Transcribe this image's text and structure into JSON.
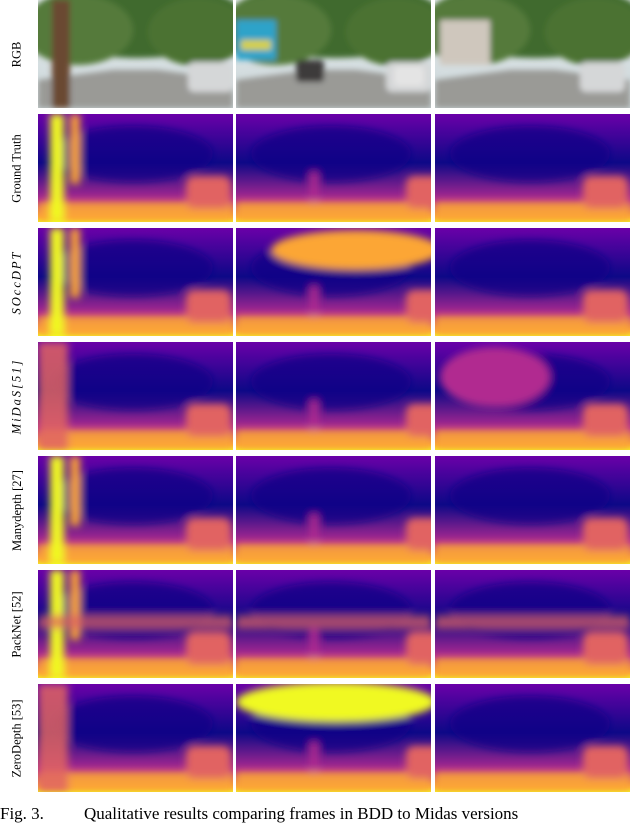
{
  "figure": {
    "row_labels": [
      {
        "text": "RGB",
        "math": false
      },
      {
        "text": "Ground Truth",
        "math": false
      },
      {
        "text": "SOccDPT",
        "math": true
      },
      {
        "text": "MiDaS[51]",
        "math": true
      },
      {
        "text": "Manydepth [27]",
        "math": false
      },
      {
        "text": "PackNet [52]",
        "math": false
      },
      {
        "text": "ZeroDepth [53]",
        "math": false
      }
    ],
    "colormap": [
      "#0d0887",
      "#6a00a8",
      "#b12a90",
      "#e16462",
      "#fca636",
      "#f0f921"
    ],
    "caption_label": "Fig. 3.",
    "caption_text": "Qualitative results comparing frames in BDD to Midas versions"
  }
}
